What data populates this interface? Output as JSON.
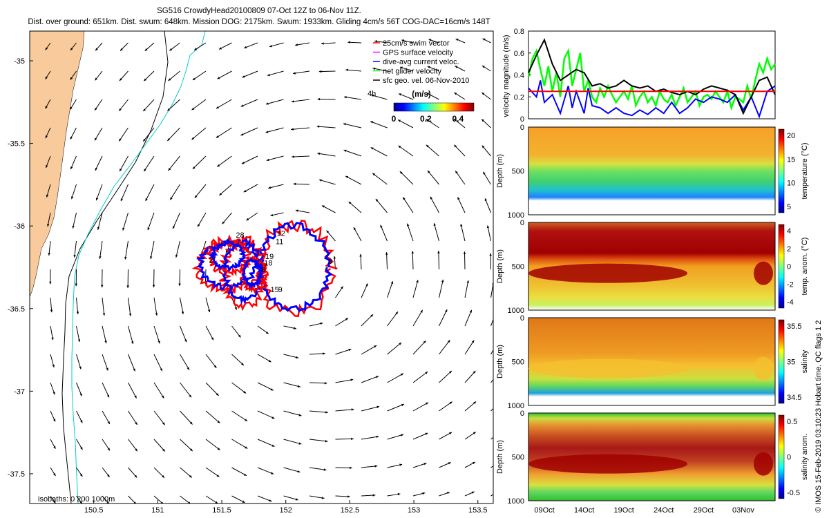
{
  "header": {
    "line1": "SG516 CrowdyHead20100809 07-Oct 12Z to 06-Nov 11Z.",
    "line2": "Dist. over ground: 651km. Dist. swum: 648km. Mission DOG: 2175km. Swum: 1933km. Gliding 4cm/s 56T COG-DAC=16cm/s 148T"
  },
  "credit": "© IMOS 15-Feb-2019 03:10:23 Hobart time. QC flags 1  2",
  "colors": {
    "land": "#f9cb9c",
    "track_red": "#ff0000",
    "track_blue": "#0000ff",
    "isobath_200": "#00cccc",
    "isobath_1000": "#000000",
    "series_green": "#00ff00",
    "series_blue": "#0000ff",
    "series_black": "#000000",
    "series_red": "#ff0000"
  },
  "chart_data": [
    {
      "id": "map",
      "type": "scatter",
      "title": "",
      "x_ticks": [
        "150.5",
        "151",
        "151.5",
        "152",
        "152.5",
        "153",
        "153.5"
      ],
      "y_ticks": [
        "-35",
        "-35.5",
        "-36",
        "-36.5",
        "-37",
        "-37.5"
      ],
      "xlim": [
        150.0,
        153.62
      ],
      "ylim": [
        -37.68,
        -34.82
      ],
      "legend": [
        {
          "label": "25cm/s swim vector",
          "color": "#ff0000"
        },
        {
          "label": "GPS surface velocity",
          "color": "#ff00ff"
        },
        {
          "label": "dive-avg current veloc.",
          "color": "#0000ff"
        },
        {
          "label": "net glider velocity",
          "color": "#00ff00"
        },
        {
          "label": "sfc geo. vel. 06-Nov-2010",
          "color": "#000000"
        }
      ],
      "legend_placement": "top-right",
      "time_note": "4h",
      "colorbar": {
        "title": "(m/s)",
        "ticks": [
          "0",
          "0.2",
          "0.4"
        ],
        "range": [
          0,
          0.5
        ],
        "colormap": "jet"
      },
      "isobaths_label": "isobaths: 0   200   1000m",
      "dive_labels": [
        {
          "text": "12",
          "x": 151.93,
          "y": -36.06
        },
        {
          "text": "11",
          "x": 151.92,
          "y": -36.11
        },
        {
          "text": "28",
          "x": 151.61,
          "y": -36.07
        },
        {
          "text": "2",
          "x": 151.4,
          "y": -36.22
        },
        {
          "text": "19",
          "x": 151.84,
          "y": -36.2
        },
        {
          "text": "18",
          "x": 151.83,
          "y": -36.24
        },
        {
          "text": "8",
          "x": 151.81,
          "y": -36.28
        },
        {
          "text": "9",
          "x": 152.33,
          "y": -36.23
        },
        {
          "text": "15",
          "x": 151.88,
          "y": -36.4
        },
        {
          "text": "9",
          "x": 151.94,
          "y": -36.4
        }
      ],
      "eddy_center": [
        151.95,
        -36.28
      ]
    },
    {
      "id": "velocity",
      "type": "line",
      "ylabel": "velocity magnitude (m/s)",
      "ylim": [
        0,
        0.8
      ],
      "y_ticks": [
        "0",
        "0.2",
        "0.4",
        "0.6",
        "0.8"
      ],
      "x_range_days": [
        0,
        31
      ],
      "series": [
        {
          "color": "#00ff00",
          "x": [
            0,
            0.5,
            1,
            1.5,
            2,
            2.5,
            3,
            3.5,
            4,
            4.5,
            5,
            5.5,
            6,
            6.5,
            7,
            7.5,
            8,
            8.5,
            9,
            9.5,
            10,
            10.5,
            11,
            11.5,
            12,
            12.5,
            13,
            13.5,
            14,
            14.5,
            15,
            15.5,
            16,
            16.5,
            17,
            17.5,
            18,
            18.5,
            19,
            19.5,
            20,
            20.5,
            21,
            21.5,
            22,
            22.5,
            23,
            23.5,
            24,
            24.5,
            25,
            25.5,
            26,
            26.5,
            27,
            27.5,
            28,
            28.5,
            29,
            29.5,
            30,
            30.5,
            31
          ],
          "y": [
            0.38,
            0.55,
            0.62,
            0.45,
            0.3,
            0.48,
            0.25,
            0.42,
            0.2,
            0.55,
            0.62,
            0.3,
            0.45,
            0.6,
            0.25,
            0.35,
            0.2,
            0.15,
            0.28,
            0.2,
            0.3,
            0.22,
            0.15,
            0.2,
            0.25,
            0.18,
            0.3,
            0.12,
            0.2,
            0.25,
            0.15,
            0.2,
            0.12,
            0.25,
            0.18,
            0.15,
            0.22,
            0.12,
            0.2,
            0.28,
            0.15,
            0.2,
            0.25,
            0.12,
            0.2,
            0.22,
            0.18,
            0.25,
            0.2,
            0.15,
            0.25,
            0.1,
            0.2,
            0.18,
            0.15,
            0.3,
            0.18,
            0.35,
            0.5,
            0.42,
            0.55,
            0.45,
            0.5
          ]
        },
        {
          "color": "#0000ff",
          "x": [
            0,
            1,
            1.5,
            2,
            3,
            4,
            5,
            5.5,
            6,
            7,
            7.5,
            8,
            9,
            10,
            11,
            12,
            13,
            14,
            15,
            16,
            17,
            18,
            19,
            20,
            21,
            22,
            23,
            24,
            25,
            26,
            27,
            28,
            29,
            30,
            31
          ],
          "y": [
            0.28,
            0.2,
            0.35,
            0.15,
            0.22,
            0.05,
            0.3,
            0.1,
            0.25,
            0.05,
            0.28,
            0.12,
            0.1,
            0.05,
            0.1,
            0.05,
            0.03,
            0.08,
            0.04,
            0.1,
            0.05,
            0.15,
            0.05,
            0.1,
            0.18,
            0.15,
            0.2,
            0.18,
            0.15,
            0.22,
            0.08,
            0.2,
            0.02,
            0.25,
            0.3
          ]
        },
        {
          "color": "#000000",
          "x": [
            0,
            1,
            2,
            3,
            4,
            5,
            6,
            7,
            8,
            9,
            10,
            11,
            12,
            13,
            14,
            15,
            16,
            17,
            18,
            19,
            20,
            21,
            22,
            23,
            24,
            25,
            26,
            27,
            28,
            29,
            30,
            31
          ],
          "y": [
            0.42,
            0.58,
            0.72,
            0.5,
            0.35,
            0.4,
            0.45,
            0.42,
            0.3,
            0.32,
            0.28,
            0.3,
            0.35,
            0.3,
            0.28,
            0.3,
            0.25,
            0.27,
            0.24,
            0.22,
            0.25,
            0.22,
            0.27,
            0.3,
            0.28,
            0.26,
            0.22,
            0.05,
            0.2,
            0.35,
            0.38,
            0.22
          ]
        },
        {
          "color": "#ff0000",
          "x": [
            0,
            31
          ],
          "y": [
            0.25,
            0.25
          ]
        }
      ]
    },
    {
      "id": "temperature",
      "type": "heatmap",
      "ylabel": "Depth (m)",
      "cblabel": "temperature (°C)",
      "cb_ticks": [
        "20",
        "15",
        "10",
        "5"
      ],
      "y_ticks": [
        "0",
        "500",
        "1000"
      ]
    },
    {
      "id": "temp_anom",
      "type": "heatmap",
      "ylabel": "Depth (m)",
      "cblabel": "temp. anom. (°C)",
      "cb_ticks": [
        "4",
        "2",
        "0",
        "-2",
        "-4"
      ],
      "y_ticks": [
        "0",
        "500",
        "1000"
      ]
    },
    {
      "id": "salinity",
      "type": "heatmap",
      "ylabel": "Depth (m)",
      "cblabel": "salinity",
      "cb_ticks": [
        "35.5",
        "35",
        "34.5"
      ],
      "y_ticks": [
        "0",
        "500",
        "1000"
      ]
    },
    {
      "id": "sal_anom",
      "type": "heatmap",
      "ylabel": "Depth (m)",
      "cblabel": "salinity anom.",
      "cb_ticks": [
        "0.5",
        "0",
        "-0.5"
      ],
      "y_ticks": [
        "0",
        "500",
        "1000"
      ],
      "x_ticks": [
        "09Oct",
        "14Oct",
        "19Oct",
        "24Oct",
        "29Oct",
        "03Nov"
      ]
    }
  ]
}
